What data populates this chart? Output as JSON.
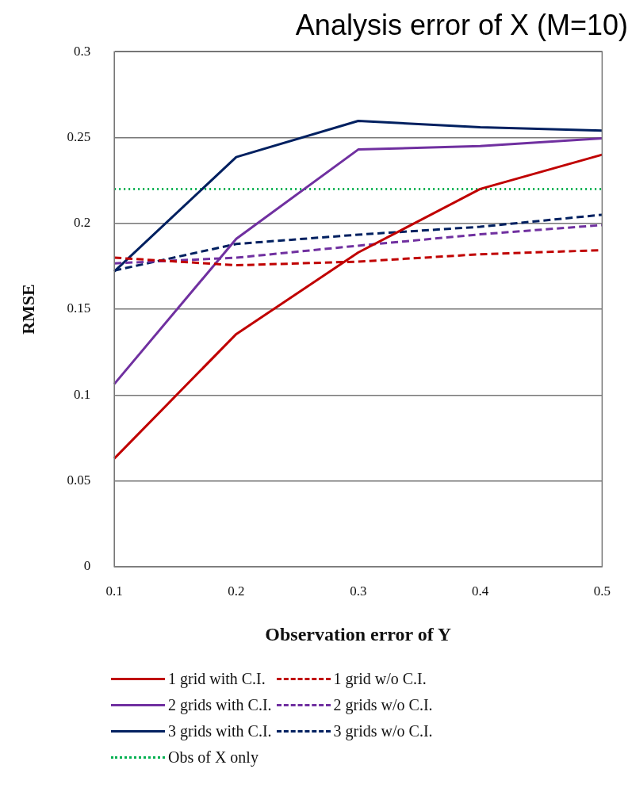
{
  "chart_data": {
    "type": "line",
    "title": "Analysis error of X (M=10)",
    "xlabel": "Observation error of Y",
    "ylabel": "RMSE",
    "categories": [
      "0.1",
      "0.2",
      "0.3",
      "0.4",
      "0.5"
    ],
    "series": [
      {
        "name": "1 grid with C.I.",
        "color": "#c00000",
        "line_style": "solid",
        "values": [
          0.063,
          0.1355,
          0.183,
          0.22,
          0.24
        ]
      },
      {
        "name": "1 grid w/o C.I.",
        "color": "#c00000",
        "line_style": "dashed",
        "values": [
          0.18,
          0.1756,
          0.1777,
          0.182,
          0.1844
        ]
      },
      {
        "name": "2 grids with C.I.",
        "color": "#7030a0",
        "line_style": "solid",
        "values": [
          0.1064,
          0.191,
          0.243,
          0.245,
          0.2495
        ]
      },
      {
        "name": "2 grids w/o C.I.",
        "color": "#7030a0",
        "line_style": "dashed",
        "values": [
          0.1767,
          0.18,
          0.187,
          0.1936,
          0.199
        ]
      },
      {
        "name": "3 grids with C.I.",
        "color": "#002060",
        "line_style": "solid",
        "values": [
          0.172,
          0.2386,
          0.2597,
          0.256,
          0.254
        ]
      },
      {
        "name": "3 grids w/o C.I.",
        "color": "#002060",
        "line_style": "dashed",
        "values": [
          0.1725,
          0.188,
          0.1934,
          0.198,
          0.205
        ]
      },
      {
        "name": "Obs of X only",
        "color": "#00b050",
        "line_style": "dotted",
        "values": [
          0.22,
          0.22,
          0.22,
          0.22,
          0.22
        ]
      }
    ],
    "ylim": [
      0,
      0.3
    ],
    "yticks": [
      0,
      0.05,
      0.1,
      0.15,
      0.2,
      0.25,
      0.3
    ],
    "grid": "y",
    "legend": "bottom",
    "marker": "none"
  }
}
